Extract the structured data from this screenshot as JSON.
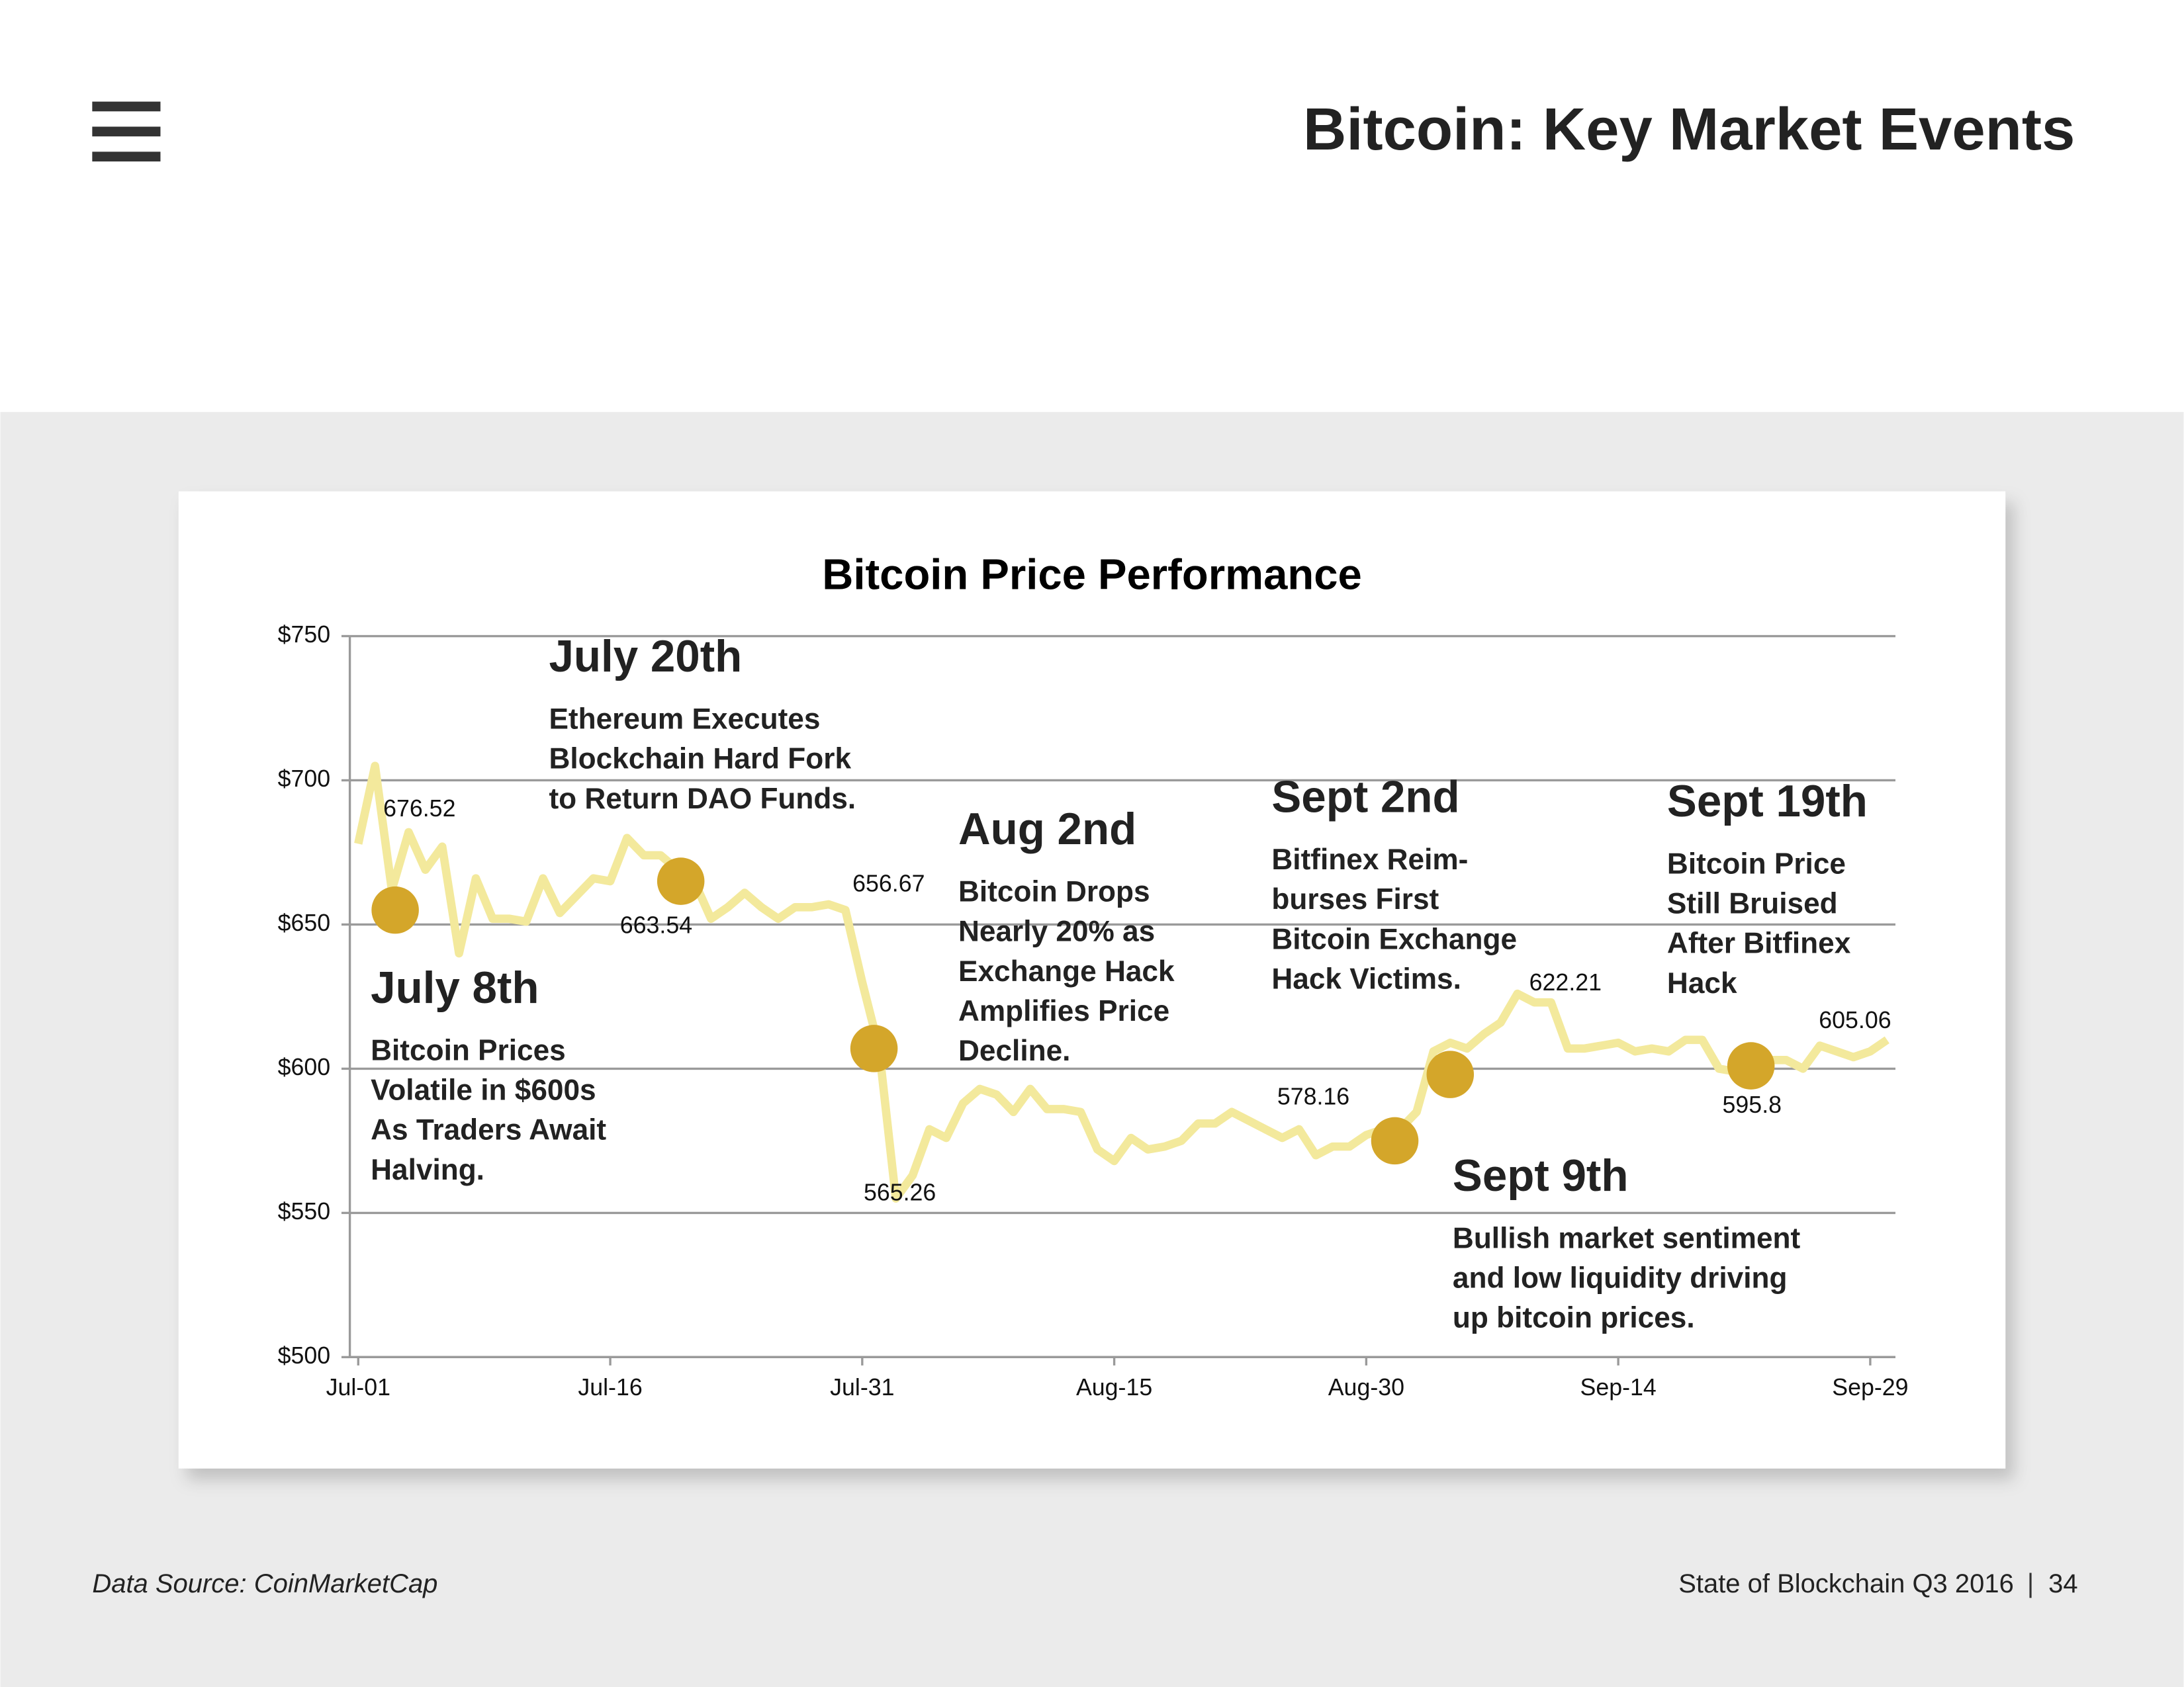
{
  "header": {
    "title": "Bitcoin: Key Market Events"
  },
  "chart_data": {
    "type": "line",
    "title": "Bitcoin Price Performance",
    "categories": [
      "Jul-01",
      null,
      null,
      null,
      null,
      null,
      null,
      null,
      null,
      null,
      null,
      null,
      null,
      null,
      null,
      "Jul-16",
      null,
      null,
      null,
      null,
      null,
      null,
      null,
      null,
      null,
      null,
      null,
      null,
      null,
      null,
      "Jul-31",
      null,
      null,
      null,
      null,
      null,
      null,
      null,
      null,
      null,
      null,
      null,
      null,
      null,
      null,
      "Aug-15",
      null,
      null,
      null,
      null,
      null,
      null,
      null,
      null,
      null,
      null,
      null,
      null,
      null,
      null,
      "Aug-30",
      null,
      null,
      null,
      null,
      null,
      null,
      null,
      null,
      null,
      null,
      null,
      null,
      null,
      null,
      "Sep-14",
      null,
      null,
      null,
      null,
      null,
      null,
      null,
      null,
      null,
      null,
      null,
      null,
      null,
      null,
      "Sep-29",
      null
    ],
    "series": [
      {
        "color": "#f3e99c",
        "values": [
          678,
          705,
          662,
          682,
          669,
          677,
          640,
          666,
          652,
          652,
          651,
          666,
          654,
          660,
          666,
          665,
          680,
          674,
          674,
          669,
          665,
          652,
          656,
          661,
          656,
          652,
          656,
          656,
          657,
          655,
          630,
          607,
          555,
          563,
          579,
          576,
          588,
          593,
          591,
          585,
          593,
          586,
          586,
          585,
          572,
          568,
          576,
          572,
          573,
          575,
          581,
          581,
          585,
          582,
          579,
          576,
          579,
          570,
          573,
          573,
          577,
          579,
          579,
          585,
          606,
          609,
          607,
          612,
          616,
          626,
          623,
          623,
          607,
          607,
          608,
          609,
          606,
          607,
          606,
          610,
          610,
          600,
          599,
          599,
          603,
          603,
          600,
          608,
          606,
          604,
          606,
          610
        ]
      }
    ],
    "ylim": [
      500,
      750
    ],
    "yticks": [
      {
        "value": 500,
        "label": "$500"
      },
      {
        "value": 550,
        "label": "$550"
      },
      {
        "value": 600,
        "label": "$600"
      },
      {
        "value": 650,
        "label": "$650"
      },
      {
        "value": 700,
        "label": "$700"
      },
      {
        "value": 750,
        "label": "$750"
      }
    ],
    "grid": true,
    "price_labels": [
      676.52,
      663.54,
      656.67,
      565.26,
      578.16,
      622.21,
      595.8,
      605.06
    ],
    "event_color": "#d4a62a",
    "events": [
      {
        "title": "July 8th",
        "value": 655,
        "lines": [
          "Bitcoin Prices",
          "Volatile in $600s",
          "As Traders Await",
          "Halving."
        ]
      },
      {
        "title": "July 20th",
        "value": 665,
        "lines": [
          "Ethereum Executes",
          "Blockchain Hard Fork",
          "to Return DAO Funds."
        ]
      },
      {
        "title": "Aug 2nd",
        "value": 607,
        "lines": [
          "Bitcoin Drops",
          "Nearly 20% as",
          "Exchange Hack",
          "Amplifies Price",
          "Decline."
        ]
      },
      {
        "title": "Sept 2nd",
        "value": 575,
        "lines": [
          "Bitfinex Reim-",
          "burses First",
          "Bitcoin Exchange",
          "Hack Victims."
        ]
      },
      {
        "title": "Sept 9th",
        "value": 598,
        "lines": [
          "Bullish market sentiment",
          "and low liquidity driving",
          "up bitcoin prices."
        ]
      },
      {
        "title": "Sept 19th",
        "value": 601,
        "lines": [
          "Bitcoin Price",
          "Still Bruised",
          "After Bitfinex",
          "Hack"
        ]
      }
    ]
  },
  "footer": {
    "source": "Data Source: CoinMarketCap",
    "report": "State of Blockchain Q3 2016",
    "page": "34"
  }
}
